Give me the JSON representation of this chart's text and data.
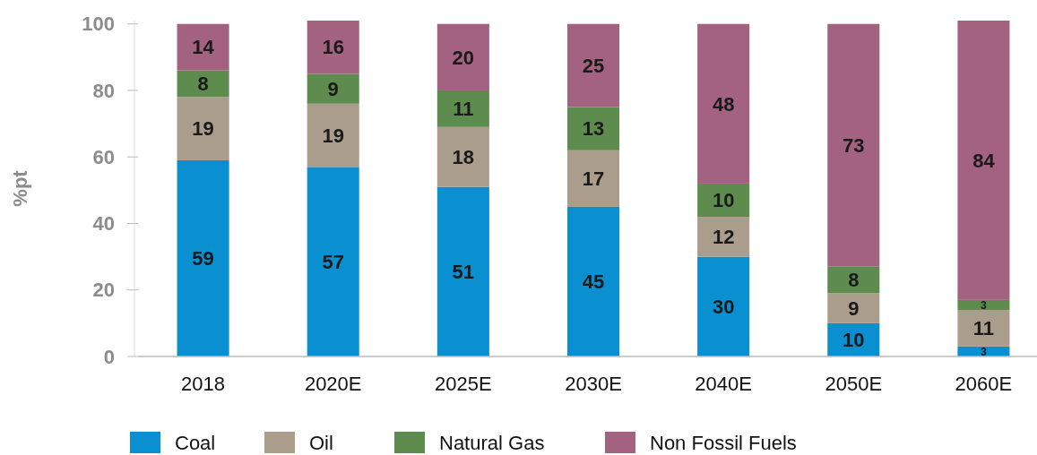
{
  "chart_data": {
    "type": "bar",
    "stacked": true,
    "ylabel": "%pt",
    "categories": [
      "2018",
      "2020E",
      "2025E",
      "2030E",
      "2040E",
      "2050E",
      "2060E"
    ],
    "series": [
      {
        "name": "Coal",
        "color": "#0a8fd0",
        "values": [
          59,
          57,
          51,
          45,
          30,
          10,
          3
        ]
      },
      {
        "name": "Oil",
        "color": "#ab9d8c",
        "values": [
          19,
          19,
          18,
          17,
          12,
          9,
          11
        ]
      },
      {
        "name": "Natural Gas",
        "color": "#5e8c4f",
        "values": [
          8,
          9,
          11,
          13,
          10,
          8,
          3
        ]
      },
      {
        "name": "Non Fossil Fuels",
        "color": "#a3627f",
        "values": [
          14,
          16,
          20,
          25,
          48,
          73,
          84
        ]
      }
    ],
    "ylim": [
      0,
      101
    ],
    "yticks": [
      0,
      20,
      40,
      60,
      80,
      100
    ],
    "data_labels": true,
    "legend": "bottom",
    "grid": false
  }
}
